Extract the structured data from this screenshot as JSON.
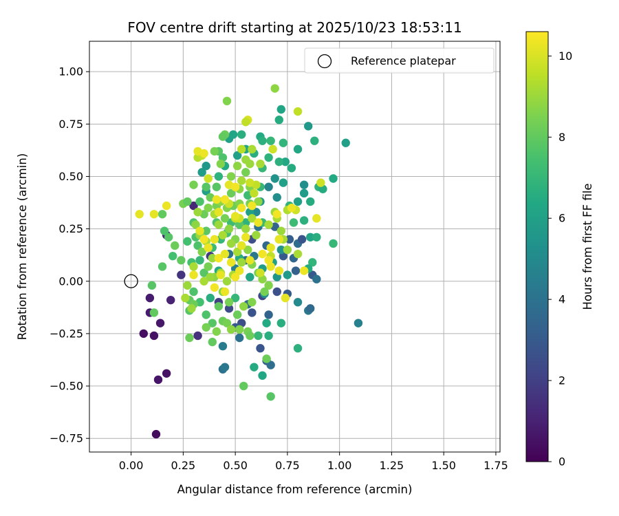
{
  "chart_data": {
    "type": "scatter",
    "title": "FOV centre drift starting at 2025/10/23 18:53:11",
    "xlabel": "Angular distance from reference (arcmin)",
    "ylabel": "Rotation from reference (arcmin)",
    "xlim": [
      -0.2,
      1.77
    ],
    "ylim": [
      -0.815,
      1.145
    ],
    "xticks": [
      "0.00",
      "0.25",
      "0.50",
      "0.75",
      "1.00",
      "1.25",
      "1.50",
      "1.75"
    ],
    "yticks": [
      "1.00",
      "0.75",
      "0.50",
      "0.25",
      "0.00",
      "−0.25",
      "−0.50",
      "−0.75"
    ],
    "grid": true,
    "legend": {
      "placement": "top-right",
      "label": "Reference platepar"
    },
    "reference_point": {
      "x": 0.0,
      "y": 0.0
    },
    "colorbar": {
      "label": "Hours from first FF file",
      "range": [
        0,
        10.6
      ],
      "ticks": [
        "0",
        "2",
        "4",
        "6",
        "8",
        "10"
      ],
      "colormap": "viridis"
    },
    "points_columns": [
      "x",
      "y",
      "hours"
    ],
    "points": [
      [
        0.12,
        -0.73,
        0.3
      ],
      [
        0.06,
        -0.25,
        0.4
      ],
      [
        0.11,
        -0.26,
        0.5
      ],
      [
        0.17,
        -0.44,
        0.5
      ],
      [
        0.13,
        -0.47,
        0.6
      ],
      [
        0.14,
        -0.2,
        0.7
      ],
      [
        0.09,
        -0.15,
        0.8
      ],
      [
        0.09,
        -0.08,
        0.8
      ],
      [
        0.19,
        -0.09,
        1.0
      ],
      [
        0.17,
        0.22,
        1.0
      ],
      [
        0.24,
        0.03,
        1.6
      ],
      [
        0.3,
        0.36,
        1.2
      ],
      [
        0.32,
        -0.26,
        1.5
      ],
      [
        0.38,
        0.12,
        1.8
      ],
      [
        0.42,
        -0.1,
        2.0
      ],
      [
        0.47,
        -0.13,
        2.4
      ],
      [
        0.53,
        -0.2,
        2.5
      ],
      [
        0.58,
        -0.15,
        2.7
      ],
      [
        0.62,
        -0.32,
        2.8
      ],
      [
        0.65,
        -0.38,
        3.2
      ],
      [
        0.66,
        -0.16,
        3.4
      ],
      [
        0.67,
        -0.4,
        3.8
      ],
      [
        0.44,
        -0.42,
        4.0
      ],
      [
        0.45,
        -0.41,
        4.2
      ],
      [
        0.44,
        -0.31,
        4.4
      ],
      [
        0.52,
        -0.27,
        4.0
      ],
      [
        0.5,
        -0.22,
        3.0
      ],
      [
        0.56,
        -0.11,
        3.6
      ],
      [
        0.63,
        -0.07,
        2.2
      ],
      [
        0.7,
        -0.05,
        2.6
      ],
      [
        0.75,
        -0.06,
        3.0
      ],
      [
        0.79,
        0.05,
        3.3
      ],
      [
        0.85,
        -0.14,
        4.2
      ],
      [
        0.86,
        -0.13,
        3.6
      ],
      [
        0.87,
        0.03,
        3.0
      ],
      [
        0.89,
        0.01,
        4.0
      ],
      [
        0.78,
        0.11,
        3.5
      ],
      [
        0.8,
        0.18,
        3.8
      ],
      [
        0.82,
        0.2,
        2.8
      ],
      [
        0.76,
        0.2,
        3.2
      ],
      [
        0.73,
        0.12,
        3.0
      ],
      [
        0.69,
        0.26,
        3.4
      ],
      [
        0.65,
        0.17,
        3.6
      ],
      [
        0.61,
        0.26,
        4.0
      ],
      [
        0.58,
        0.2,
        2.5
      ],
      [
        0.55,
        0.1,
        3.8
      ],
      [
        0.5,
        0.06,
        4.5
      ],
      [
        0.47,
        0.13,
        4.0
      ],
      [
        0.59,
        0.12,
        4.2
      ],
      [
        1.09,
        -0.2,
        4.6
      ],
      [
        0.8,
        -0.1,
        5.0
      ],
      [
        0.64,
        -0.06,
        5.2
      ],
      [
        0.7,
        0.02,
        5.5
      ],
      [
        0.75,
        0.03,
        5.7
      ],
      [
        0.68,
        0.09,
        6.0
      ],
      [
        0.72,
        0.15,
        5.4
      ],
      [
        0.63,
        0.06,
        5.8
      ],
      [
        0.57,
        0.02,
        6.2
      ],
      [
        0.52,
        0.11,
        6.5
      ],
      [
        0.42,
        0.05,
        6.4
      ],
      [
        0.38,
        -0.08,
        6.6
      ],
      [
        0.6,
        0.33,
        5.0
      ],
      [
        0.62,
        0.38,
        5.6
      ],
      [
        0.66,
        0.45,
        4.8
      ],
      [
        0.7,
        0.4,
        5.2
      ],
      [
        0.69,
        0.49,
        5.4
      ],
      [
        0.73,
        0.47,
        6.0
      ],
      [
        0.74,
        0.57,
        6.3
      ],
      [
        0.77,
        0.54,
        6.5
      ],
      [
        0.71,
        0.57,
        6.7
      ],
      [
        0.66,
        0.59,
        6.8
      ],
      [
        0.63,
        0.54,
        7.0
      ],
      [
        0.59,
        0.61,
        6.6
      ],
      [
        0.55,
        0.63,
        6.2
      ],
      [
        0.51,
        0.6,
        6.0
      ],
      [
        0.45,
        0.55,
        6.4
      ],
      [
        0.42,
        0.5,
        6.8
      ],
      [
        0.36,
        0.43,
        6.0
      ],
      [
        0.34,
        0.52,
        5.8
      ],
      [
        0.36,
        0.55,
        5.6
      ],
      [
        0.47,
        0.68,
        6.0
      ],
      [
        0.49,
        0.7,
        6.2
      ],
      [
        0.53,
        0.7,
        6.6
      ],
      [
        0.62,
        0.69,
        6.4
      ],
      [
        0.63,
        0.67,
        6.7
      ],
      [
        0.67,
        0.67,
        7.0
      ],
      [
        0.73,
        0.66,
        6.9
      ],
      [
        0.71,
        0.77,
        6.5
      ],
      [
        0.72,
        0.82,
        6.2
      ],
      [
        0.85,
        0.74,
        5.6
      ],
      [
        0.8,
        0.63,
        6.3
      ],
      [
        0.88,
        0.67,
        6.7
      ],
      [
        1.03,
        0.66,
        6.0
      ],
      [
        0.97,
        0.49,
        6.4
      ],
      [
        0.9,
        0.45,
        6.8
      ],
      [
        0.92,
        0.44,
        6.5
      ],
      [
        0.83,
        0.46,
        5.2
      ],
      [
        0.83,
        0.42,
        5.8
      ],
      [
        0.8,
        0.38,
        6.0
      ],
      [
        0.86,
        0.38,
        6.5
      ],
      [
        0.83,
        0.29,
        6.7
      ],
      [
        0.86,
        0.21,
        6.2
      ],
      [
        0.89,
        0.21,
        6.6
      ],
      [
        0.97,
        0.18,
        7.0
      ],
      [
        0.87,
        0.09,
        6.9
      ],
      [
        0.85,
        0.06,
        6.5
      ],
      [
        0.76,
        0.36,
        6.8
      ],
      [
        0.78,
        0.28,
        7.2
      ],
      [
        0.56,
        0.41,
        7.3
      ],
      [
        0.63,
        0.28,
        7.1
      ],
      [
        0.62,
        0.45,
        7.0
      ],
      [
        0.57,
        0.33,
        6.0
      ],
      [
        0.55,
        0.28,
        6.8
      ],
      [
        0.63,
        -0.45,
        6.3
      ],
      [
        0.59,
        -0.41,
        6.5
      ],
      [
        0.61,
        -0.26,
        7.0
      ],
      [
        0.66,
        -0.26,
        6.6
      ],
      [
        0.65,
        -0.2,
        6.4
      ],
      [
        0.72,
        -0.2,
        6.6
      ],
      [
        0.8,
        -0.32,
        6.7
      ],
      [
        0.54,
        -0.5,
        8.0
      ],
      [
        0.67,
        -0.55,
        7.8
      ],
      [
        0.65,
        -0.37,
        8.2
      ],
      [
        0.5,
        -0.08,
        7.0
      ],
      [
        0.43,
        0.2,
        7.0
      ],
      [
        0.46,
        0.23,
        7.4
      ],
      [
        0.48,
        0.28,
        7.2
      ],
      [
        0.52,
        0.27,
        7.8
      ],
      [
        0.41,
        0.28,
        7.6
      ],
      [
        0.39,
        0.16,
        7.2
      ],
      [
        0.33,
        0.1,
        7.0
      ],
      [
        0.29,
        0.09,
        7.4
      ],
      [
        0.31,
        0.21,
        7.6
      ],
      [
        0.36,
        0.24,
        7.9
      ],
      [
        0.42,
        0.62,
        7.8
      ],
      [
        0.44,
        0.59,
        7.6
      ],
      [
        0.45,
        0.7,
        8.2
      ],
      [
        0.44,
        0.69,
        8.0
      ],
      [
        0.41,
        0.45,
        7.8
      ],
      [
        0.38,
        0.4,
        8.2
      ],
      [
        0.33,
        0.38,
        7.6
      ],
      [
        0.36,
        0.45,
        7.8
      ],
      [
        0.3,
        0.28,
        7.6
      ],
      [
        0.27,
        0.19,
        7.4
      ],
      [
        0.32,
        0.17,
        7.6
      ],
      [
        0.35,
        0.04,
        7.8
      ],
      [
        0.3,
        -0.05,
        7.6
      ],
      [
        0.33,
        -0.1,
        7.4
      ],
      [
        0.28,
        -0.09,
        8.0
      ],
      [
        0.3,
        -0.11,
        8.2
      ],
      [
        0.28,
        -0.14,
        7.8
      ],
      [
        0.36,
        -0.16,
        7.6
      ],
      [
        0.39,
        -0.2,
        7.8
      ],
      [
        0.42,
        -0.12,
        8.0
      ],
      [
        0.44,
        -0.19,
        8.2
      ],
      [
        0.46,
        -0.2,
        8.4
      ],
      [
        0.41,
        -0.24,
        8.6
      ],
      [
        0.48,
        -0.23,
        8.8
      ],
      [
        0.52,
        -0.23,
        8.6
      ],
      [
        0.56,
        -0.24,
        8.4
      ],
      [
        0.57,
        -0.26,
        8.2
      ],
      [
        0.39,
        -0.29,
        8.0
      ],
      [
        0.36,
        -0.22,
        8.4
      ],
      [
        0.28,
        -0.27,
        8.2
      ],
      [
        0.2,
        0.12,
        7.4
      ],
      [
        0.18,
        0.21,
        7.8
      ],
      [
        0.21,
        0.17,
        8.2
      ],
      [
        0.24,
        0.1,
        8.0
      ],
      [
        0.15,
        0.07,
        7.8
      ],
      [
        0.16,
        0.24,
        7.6
      ],
      [
        0.15,
        0.32,
        8.0
      ],
      [
        0.1,
        -0.02,
        7.8
      ],
      [
        0.11,
        -0.15,
        8.0
      ],
      [
        0.25,
        0.37,
        8.4
      ],
      [
        0.27,
        0.38,
        8.0
      ],
      [
        0.3,
        0.46,
        8.4
      ],
      [
        0.35,
        0.32,
        8.2
      ],
      [
        0.37,
        0.35,
        8.6
      ],
      [
        0.41,
        0.36,
        8.4
      ],
      [
        0.43,
        0.38,
        8.8
      ],
      [
        0.46,
        0.35,
        8.6
      ],
      [
        0.49,
        0.36,
        8.2
      ],
      [
        0.52,
        0.37,
        8.6
      ],
      [
        0.57,
        0.37,
        8.4
      ],
      [
        0.61,
        0.38,
        8.8
      ],
      [
        0.46,
        0.86,
        8.6
      ],
      [
        0.69,
        0.92,
        8.8
      ],
      [
        0.4,
        0.62,
        8.4
      ],
      [
        0.43,
        0.56,
        8.6
      ],
      [
        0.48,
        0.5,
        8.6
      ],
      [
        0.51,
        0.55,
        8.8
      ],
      [
        0.55,
        0.52,
        8.4
      ],
      [
        0.57,
        0.45,
        8.6
      ],
      [
        0.52,
        0.44,
        8.8
      ],
      [
        0.48,
        0.42,
        8.2
      ],
      [
        0.45,
        0.3,
        8.4
      ],
      [
        0.47,
        0.25,
        8.8
      ],
      [
        0.5,
        0.2,
        8.6
      ],
      [
        0.53,
        0.17,
        8.4
      ],
      [
        0.56,
        0.15,
        8.8
      ],
      [
        0.58,
        0.08,
        8.6
      ],
      [
        0.61,
        0.04,
        8.4
      ],
      [
        0.63,
        0.01,
        8.8
      ],
      [
        0.66,
        -0.02,
        8.6
      ],
      [
        0.64,
        -0.05,
        8.4
      ],
      [
        0.58,
        -0.1,
        8.6
      ],
      [
        0.54,
        -0.12,
        8.8
      ],
      [
        0.51,
        -0.16,
        8.2
      ],
      [
        0.47,
        -0.1,
        8.4
      ],
      [
        0.44,
        -0.05,
        8.6
      ],
      [
        0.4,
        0.02,
        8.8
      ],
      [
        0.37,
        0.07,
        8.4
      ],
      [
        0.34,
        0.14,
        8.6
      ],
      [
        0.31,
        0.27,
        8.8
      ],
      [
        0.32,
        0.33,
        9.0
      ],
      [
        0.4,
        0.32,
        9.2
      ],
      [
        0.42,
        0.27,
        9.0
      ],
      [
        0.44,
        0.22,
        9.2
      ],
      [
        0.48,
        0.18,
        9.0
      ],
      [
        0.51,
        0.14,
        9.2
      ],
      [
        0.53,
        0.09,
        9.0
      ],
      [
        0.49,
        0.03,
        9.2
      ],
      [
        0.46,
        0.0,
        9.0
      ],
      [
        0.43,
        0.04,
        9.2
      ],
      [
        0.39,
        0.11,
        9.0
      ],
      [
        0.36,
        0.19,
        9.2
      ],
      [
        0.33,
        0.22,
        9.0
      ],
      [
        0.3,
        0.07,
        9.2
      ],
      [
        0.27,
        -0.02,
        9.0
      ],
      [
        0.26,
        -0.08,
        9.2
      ],
      [
        0.29,
        -0.13,
        9.0
      ],
      [
        0.35,
        0.0,
        9.2
      ],
      [
        0.38,
        0.02,
        9.0
      ],
      [
        0.55,
        0.25,
        9.0
      ],
      [
        0.58,
        0.3,
        9.2
      ],
      [
        0.6,
        0.22,
        9.0
      ],
      [
        0.66,
        0.27,
        9.2
      ],
      [
        0.69,
        0.33,
        9.0
      ],
      [
        0.7,
        0.3,
        9.2
      ],
      [
        0.72,
        0.24,
        9.0
      ],
      [
        0.73,
        0.2,
        9.2
      ],
      [
        0.75,
        0.15,
        9.0
      ],
      [
        0.8,
        0.13,
        9.2
      ],
      [
        0.75,
        0.34,
        9.3
      ],
      [
        0.62,
        0.56,
        9.2
      ],
      [
        0.57,
        0.56,
        9.0
      ],
      [
        0.53,
        0.48,
        9.2
      ],
      [
        0.55,
        0.58,
        9.0
      ],
      [
        0.58,
        0.63,
        9.2
      ],
      [
        0.53,
        0.63,
        9.5
      ],
      [
        0.32,
        0.59,
        9.4
      ],
      [
        0.34,
        0.6,
        9.6
      ],
      [
        0.37,
        0.49,
        9.8
      ],
      [
        0.47,
        0.37,
        9.8
      ],
      [
        0.5,
        0.3,
        9.6
      ],
      [
        0.52,
        0.3,
        9.8
      ],
      [
        0.6,
        0.46,
        9.6
      ],
      [
        0.57,
        0.47,
        9.8
      ],
      [
        0.59,
        0.42,
        9.6
      ],
      [
        0.56,
        0.77,
        10.0
      ],
      [
        0.55,
        0.76,
        9.6
      ],
      [
        0.68,
        0.63,
        9.8
      ],
      [
        0.8,
        0.81,
        9.6
      ],
      [
        0.91,
        0.47,
        9.8
      ],
      [
        0.79,
        0.34,
        9.8
      ],
      [
        0.71,
        0.2,
        9.8
      ],
      [
        0.67,
        0.12,
        9.6
      ],
      [
        0.62,
        0.04,
        9.8
      ],
      [
        0.04,
        0.32,
        10.2
      ],
      [
        0.11,
        0.32,
        10.2
      ],
      [
        0.17,
        0.36,
        10.3
      ],
      [
        0.32,
        0.62,
        10.2
      ],
      [
        0.35,
        0.61,
        10.3
      ],
      [
        0.41,
        0.39,
        10.3
      ],
      [
        0.42,
        0.33,
        10.2
      ],
      [
        0.45,
        0.39,
        10.4
      ],
      [
        0.5,
        0.31,
        10.2
      ],
      [
        0.53,
        0.35,
        10.4
      ],
      [
        0.55,
        0.21,
        10.3
      ],
      [
        0.53,
        0.17,
        10.2
      ],
      [
        0.48,
        0.09,
        10.3
      ],
      [
        0.42,
        0.11,
        10.4
      ],
      [
        0.37,
        0.16,
        10.3
      ],
      [
        0.33,
        0.24,
        10.2
      ],
      [
        0.35,
        0.2,
        10.4
      ],
      [
        0.4,
        0.2,
        10.3
      ],
      [
        0.45,
        0.13,
        10.2
      ],
      [
        0.5,
        0.02,
        10.4
      ],
      [
        0.52,
        0.05,
        10.3
      ],
      [
        0.57,
        0.1,
        10.2
      ],
      [
        0.63,
        0.13,
        10.4
      ],
      [
        0.67,
        0.07,
        10.3
      ],
      [
        0.71,
        0.2,
        10.2
      ],
      [
        0.7,
        0.32,
        10.4
      ],
      [
        0.77,
        0.35,
        10.3
      ],
      [
        0.83,
        0.05,
        10.3
      ],
      [
        0.74,
        -0.08,
        10.2
      ],
      [
        0.89,
        0.3,
        10.2
      ],
      [
        0.58,
        0.36,
        10.4
      ],
      [
        0.61,
        0.28,
        10.3
      ],
      [
        0.3,
        0.03,
        10.3
      ],
      [
        0.47,
        0.46,
        10.2
      ],
      [
        0.5,
        0.45,
        10.4
      ],
      [
        0.43,
        0.03,
        10.2
      ],
      [
        0.45,
        -0.05,
        10.3
      ],
      [
        0.4,
        -0.03,
        10.4
      ],
      [
        0.71,
        0.05,
        10.3
      ],
      [
        0.66,
        0.1,
        10.4
      ],
      [
        0.67,
        0.16,
        10.2
      ]
    ]
  }
}
